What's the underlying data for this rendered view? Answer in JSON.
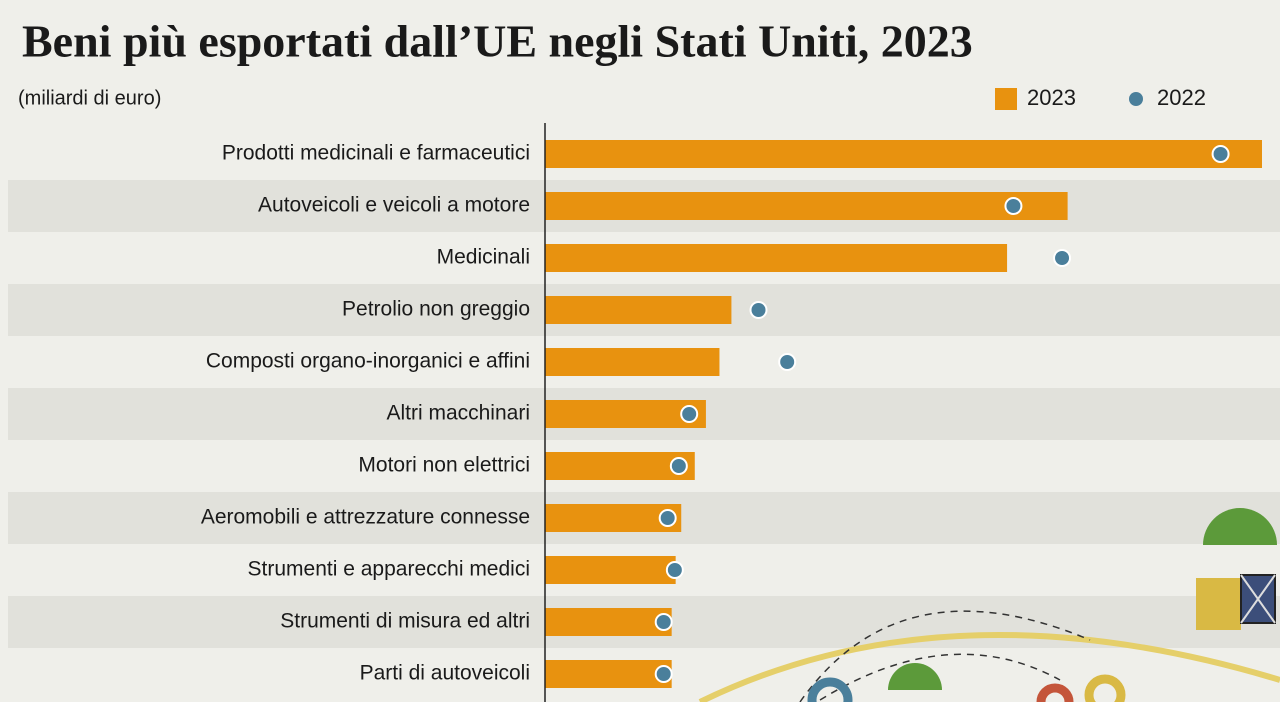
{
  "chart_data": {
    "type": "bar",
    "orientation": "horizontal",
    "title": "Beni più esportati dall’UE negli Stati Uniti, 2023",
    "subtitle": "(miliardi di euro)",
    "categories": [
      "Prodotti medicinali e farmaceutici",
      "Autoveicoli e veicoli a motore",
      "Medicinali",
      "Petrolio non greggio",
      "Composti organo-inorganici e affini",
      "Altri macchinari",
      "Motori non elettrici",
      "Aeromobili e attrezzature connesse",
      "Strumenti e apparecchi medici",
      "Strumenti di misura ed altri",
      "Parti di autoveicoli"
    ],
    "series": [
      {
        "name": "2023",
        "color": "#e8920f",
        "style": "bar",
        "values": [
          90,
          65.6,
          58,
          23.4,
          21.9,
          20.2,
          18.8,
          17.1,
          16.4,
          15.9,
          15.9
        ]
      },
      {
        "name": "2022",
        "color": "#4a7f9b",
        "style": "dot",
        "values": [
          84.8,
          58.8,
          64.9,
          26.8,
          30.4,
          18.1,
          16.8,
          15.4,
          16.3,
          14.9,
          14.9
        ]
      }
    ]
  }
}
